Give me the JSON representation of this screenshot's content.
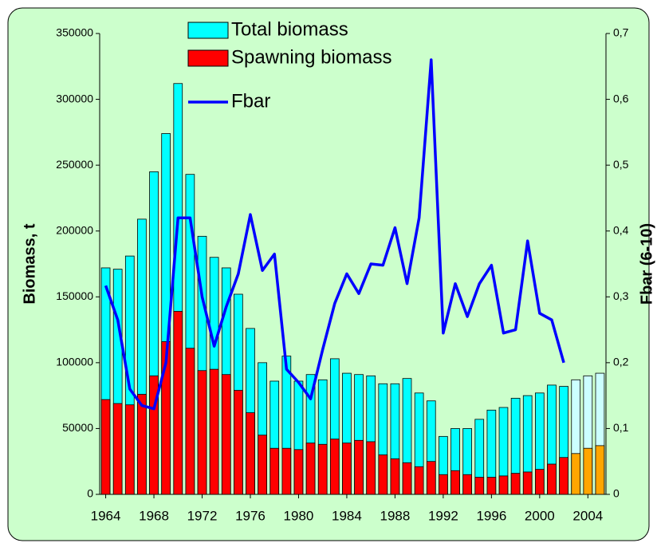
{
  "chart_data": {
    "type": "bar_line",
    "y_label": "Biomass, t",
    "y2_label": "Fbar (6-10)",
    "categories": [
      "1964",
      null,
      null,
      null,
      "1968",
      null,
      null,
      null,
      "1972",
      null,
      null,
      null,
      "1976",
      null,
      null,
      null,
      "1980",
      null,
      null,
      null,
      "1984",
      null,
      null,
      null,
      "1988",
      null,
      null,
      null,
      "1992",
      null,
      null,
      null,
      "1996",
      null,
      null,
      null,
      "2000",
      null,
      null,
      null,
      "2004",
      null
    ],
    "series": [
      {
        "name": "Total biomass",
        "type": "bar",
        "color": "#00ffff",
        "colors": [
          "#00ffff",
          "#00ffff",
          "#00ffff",
          "#00ffff",
          "#00ffff",
          "#00ffff",
          "#00ffff",
          "#00ffff",
          "#00ffff",
          "#00ffff",
          "#00ffff",
          "#00ffff",
          "#00ffff",
          "#00ffff",
          "#00ffff",
          "#00ffff",
          "#00ffff",
          "#00ffff",
          "#00ffff",
          "#00ffff",
          "#00ffff",
          "#00ffff",
          "#00ffff",
          "#00ffff",
          "#00ffff",
          "#00ffff",
          "#00ffff",
          "#00ffff",
          "#00ffff",
          "#00ffff",
          "#00ffff",
          "#00ffff",
          "#00ffff",
          "#00ffff",
          "#00ffff",
          "#00ffff",
          "#00ffff",
          "#00ffff",
          "#00ffff",
          "#ccffff",
          "#ccffff",
          "#ccffff"
        ],
        "values": [
          172000,
          171000,
          181000,
          209000,
          245000,
          274000,
          312000,
          243000,
          196000,
          180000,
          172000,
          152000,
          126000,
          100000,
          86000,
          105000,
          86000,
          91000,
          87000,
          103000,
          92000,
          91000,
          90000,
          84000,
          84000,
          88000,
          77000,
          71000,
          44000,
          50000,
          50000,
          57000,
          64000,
          66000,
          73000,
          75000,
          77000,
          83000,
          82000,
          87000,
          90000,
          92000
        ]
      },
      {
        "name": "Spawning biomass",
        "type": "bar",
        "color": "#ff0000",
        "colors": [
          "#ff0000",
          "#ff0000",
          "#ff0000",
          "#ff0000",
          "#ff0000",
          "#ff0000",
          "#ff0000",
          "#ff0000",
          "#ff0000",
          "#ff0000",
          "#ff0000",
          "#ff0000",
          "#ff0000",
          "#ff0000",
          "#ff0000",
          "#ff0000",
          "#ff0000",
          "#ff0000",
          "#ff0000",
          "#ff0000",
          "#ff0000",
          "#ff0000",
          "#ff0000",
          "#ff0000",
          "#ff0000",
          "#ff0000",
          "#ff0000",
          "#ff0000",
          "#ff0000",
          "#ff0000",
          "#ff0000",
          "#ff0000",
          "#ff0000",
          "#ff0000",
          "#ff0000",
          "#ff0000",
          "#ff0000",
          "#ff0000",
          "#ff0000",
          "#ffa500",
          "#ffa500",
          "#ffa500"
        ],
        "values": [
          72000,
          69000,
          68000,
          76000,
          90000,
          116000,
          139000,
          111000,
          94000,
          95000,
          91000,
          79000,
          62000,
          45000,
          35000,
          35000,
          34000,
          39000,
          38000,
          42000,
          39000,
          41000,
          40000,
          30000,
          27000,
          24000,
          21000,
          25000,
          15000,
          18000,
          15000,
          13000,
          13000,
          14000,
          16000,
          17000,
          19000,
          23000,
          28000,
          31000,
          35000,
          37000
        ]
      },
      {
        "name": "Fbar",
        "type": "line",
        "axis": "y2",
        "color": "#0000ff",
        "values": [
          0.317,
          0.265,
          0.16,
          0.135,
          0.13,
          0.2,
          0.42,
          0.42,
          0.3,
          0.225,
          0.285,
          0.335,
          0.425,
          0.34,
          0.365,
          0.19,
          0.17,
          0.145,
          0.22,
          0.29,
          0.335,
          0.305,
          0.35,
          0.348,
          0.405,
          0.32,
          0.42,
          0.66,
          0.245,
          0.32,
          0.27,
          0.32,
          0.348,
          0.245,
          0.25,
          0.385,
          0.275,
          0.265,
          0.2,
          null,
          null,
          null
        ]
      }
    ],
    "ylim": [
      0,
      350000
    ],
    "yticks": [
      0,
      50000,
      100000,
      150000,
      200000,
      250000,
      300000,
      350000
    ],
    "y2lim": [
      0,
      0.7
    ],
    "y2ticks": [
      0,
      {
        "value": 0.1,
        "label": "0,1"
      },
      {
        "value": 0.2,
        "label": "0,2"
      },
      {
        "value": 0.3,
        "label": "0,3"
      },
      {
        "value": 0.4,
        "label": "0,4"
      },
      {
        "value": 0.5,
        "label": "0,5"
      },
      {
        "value": 0.6,
        "label": "0,6"
      },
      {
        "value": 0.7,
        "label": "0,7"
      }
    ],
    "legend": "top"
  }
}
